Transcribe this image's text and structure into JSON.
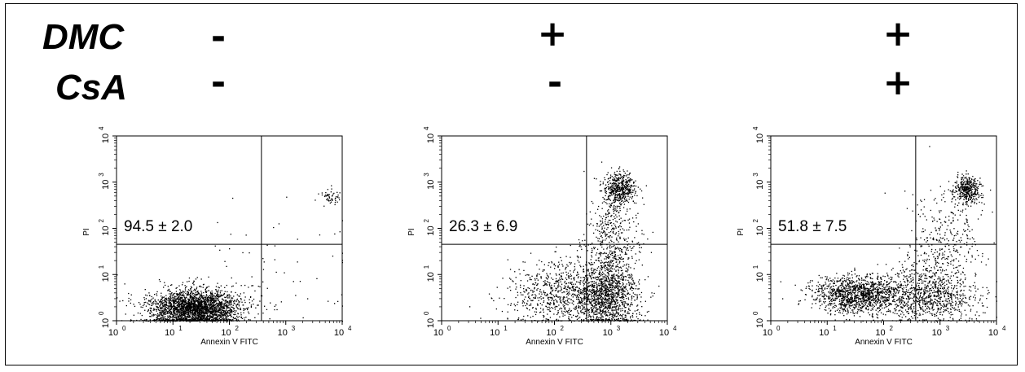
{
  "treatments": {
    "rows": [
      {
        "label": "DMC",
        "signs": [
          "-",
          "+",
          "+"
        ]
      },
      {
        "label": "CsA",
        "signs": [
          "-",
          "-",
          "+"
        ]
      }
    ]
  },
  "chart_data": [
    {
      "type": "scatter",
      "xlabel": "Annexin V FITC",
      "ylabel": "PI",
      "xscale": "log",
      "yscale": "log",
      "xlim": [
        1,
        10000
      ],
      "ylim": [
        1,
        10000
      ],
      "xticks": [
        "10",
        "10",
        "10",
        "10",
        "10"
      ],
      "xtick_exponents": [
        "0",
        "1",
        "2",
        "3",
        "4"
      ],
      "yticks": [
        "10",
        "10",
        "10",
        "10",
        "10"
      ],
      "ytick_exponents": [
        "0",
        "1",
        "2",
        "3",
        "4"
      ],
      "gate": {
        "x": 370,
        "y": 45
      },
      "annotation": "94.5 ± 2.0",
      "populations": [
        {
          "n": 2600,
          "cx": 25,
          "cy": 1.9,
          "sx": 0.4,
          "sy": 0.2,
          "ymin_clip": 1.0
        },
        {
          "n": 70,
          "cx": 8,
          "cy": 0.3,
          "sx": 0.25,
          "sy": 0.1,
          "ymin_clip": 1.0
        },
        {
          "n": 55,
          "cx": 6500,
          "cy": 500,
          "sx": 0.07,
          "sy": 0.09
        },
        {
          "n": 70,
          "cx": 400,
          "cy": 10,
          "sx": 0.8,
          "sy": 0.7
        }
      ]
    },
    {
      "type": "scatter",
      "xlabel": "Annexin V FITC",
      "ylabel": "PI",
      "xscale": "log",
      "yscale": "log",
      "xlim": [
        1,
        10000
      ],
      "ylim": [
        1,
        10000
      ],
      "xticks": [
        "10",
        "10",
        "10",
        "10",
        "10"
      ],
      "xtick_exponents": [
        "0",
        "1",
        "2",
        "3",
        "4"
      ],
      "yticks": [
        "10",
        "10",
        "10",
        "10",
        "10"
      ],
      "ytick_exponents": [
        "0",
        "1",
        "2",
        "3",
        "4"
      ],
      "gate": {
        "x": 370,
        "y": 45
      },
      "annotation": "26.3 ± 6.9",
      "populations": [
        {
          "n": 1300,
          "cx": 800,
          "cy": 3.5,
          "sx": 0.3,
          "sy": 0.38,
          "ymin_clip": 1.0
        },
        {
          "n": 700,
          "cx": 120,
          "cy": 4,
          "sx": 0.45,
          "sy": 0.35,
          "ymin_clip": 1.0
        },
        {
          "n": 500,
          "cx": 1400,
          "cy": 700,
          "sx": 0.14,
          "sy": 0.17
        },
        {
          "n": 450,
          "cx": 1000,
          "cy": 60,
          "sx": 0.22,
          "sy": 0.5
        }
      ]
    },
    {
      "type": "scatter",
      "xlabel": "Annexin V FITC",
      "ylabel": "PI",
      "xscale": "log",
      "yscale": "log",
      "xlim": [
        1,
        10000
      ],
      "ylim": [
        1,
        10000
      ],
      "xticks": [
        "10",
        "10",
        "10",
        "10",
        "10"
      ],
      "xtick_exponents": [
        "0",
        "1",
        "2",
        "3",
        "4"
      ],
      "yticks": [
        "10",
        "10",
        "10",
        "10",
        "10"
      ],
      "ytick_exponents": [
        "0",
        "1",
        "2",
        "3",
        "4"
      ],
      "gate": {
        "x": 370,
        "y": 45
      },
      "annotation": "51.8 ± 7.5",
      "populations": [
        {
          "n": 1300,
          "cx": 35,
          "cy": 3.8,
          "sx": 0.4,
          "sy": 0.2,
          "ymin_clip": 1.0
        },
        {
          "n": 900,
          "cx": 600,
          "cy": 3.5,
          "sx": 0.45,
          "sy": 0.3,
          "ymin_clip": 1.0
        },
        {
          "n": 400,
          "cx": 3000,
          "cy": 700,
          "sx": 0.12,
          "sy": 0.15
        },
        {
          "n": 350,
          "cx": 1200,
          "cy": 50,
          "sx": 0.32,
          "sy": 0.5
        }
      ]
    }
  ]
}
